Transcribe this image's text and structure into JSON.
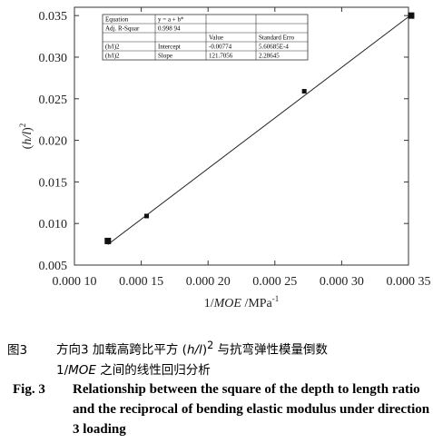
{
  "chart_data": {
    "type": "scatter",
    "xlabel": "1/MOE /MPa",
    "xlabel_italic": "MOE",
    "xlabel_pre": "1/",
    "xlabel_post": " /MPa",
    "xlabel_sup": "-1",
    "ylabel": "(h/l)",
    "ylabel_sup": "2",
    "xlim": [
      0.0001,
      0.00035
    ],
    "ylim": [
      0.005,
      0.036
    ],
    "x_ticks": [
      "0.000 10",
      "0.000 15",
      "0.000 20",
      "0.000 25",
      "0.000 30",
      "0.000 35"
    ],
    "x_tick_values": [
      0.0001,
      0.00015,
      0.0002,
      0.00025,
      0.0003,
      0.00035
    ],
    "y_ticks": [
      "0.005",
      "0.010",
      "0.015",
      "0.020",
      "0.025",
      "0.030",
      "0.035"
    ],
    "y_tick_values": [
      0.005,
      0.01,
      0.015,
      0.02,
      0.025,
      0.03,
      0.035
    ],
    "points": [
      {
        "x": 0.000125,
        "y": 0.0079
      },
      {
        "x": 0.000154,
        "y": 0.0109
      },
      {
        "x": 0.000272,
        "y": 0.0259
      },
      {
        "x": 0.000352,
        "y": 0.035
      }
    ],
    "fit_line": {
      "intercept": -0.00774,
      "slope": 121.7056
    },
    "fit_table": {
      "rows": [
        [
          "Equation",
          "y = a + b*",
          "",
          ""
        ],
        [
          "Adj. R-Squar",
          "0.998 94",
          "",
          ""
        ],
        [
          "",
          "",
          "Value",
          "Standard Erro"
        ],
        [
          "(h/l)2",
          "Intercept",
          "-0.00774",
          "5.60685E-4"
        ],
        [
          "(h/l)2",
          "Slope",
          "121.7056",
          "2.28645"
        ]
      ]
    }
  },
  "caption": {
    "cn_fig": "图3",
    "cn_line1_pre": "方向3 加载高跨比平方 (",
    "cn_line1_italic": "h/l",
    "cn_line1_post": ")",
    "cn_line1_sup": "2",
    "cn_line1_end": " 与抗弯弹性模量倒数",
    "cn_line2_pre": "1/",
    "cn_line2_italic": "MOE",
    "cn_line2_post": " 之间的线性回归分析",
    "en_fig": "Fig. 3",
    "en_text": "Relationship between the square of the depth to length ratio and the reciprocal of bending elastic modulus under direction 3 loading"
  }
}
